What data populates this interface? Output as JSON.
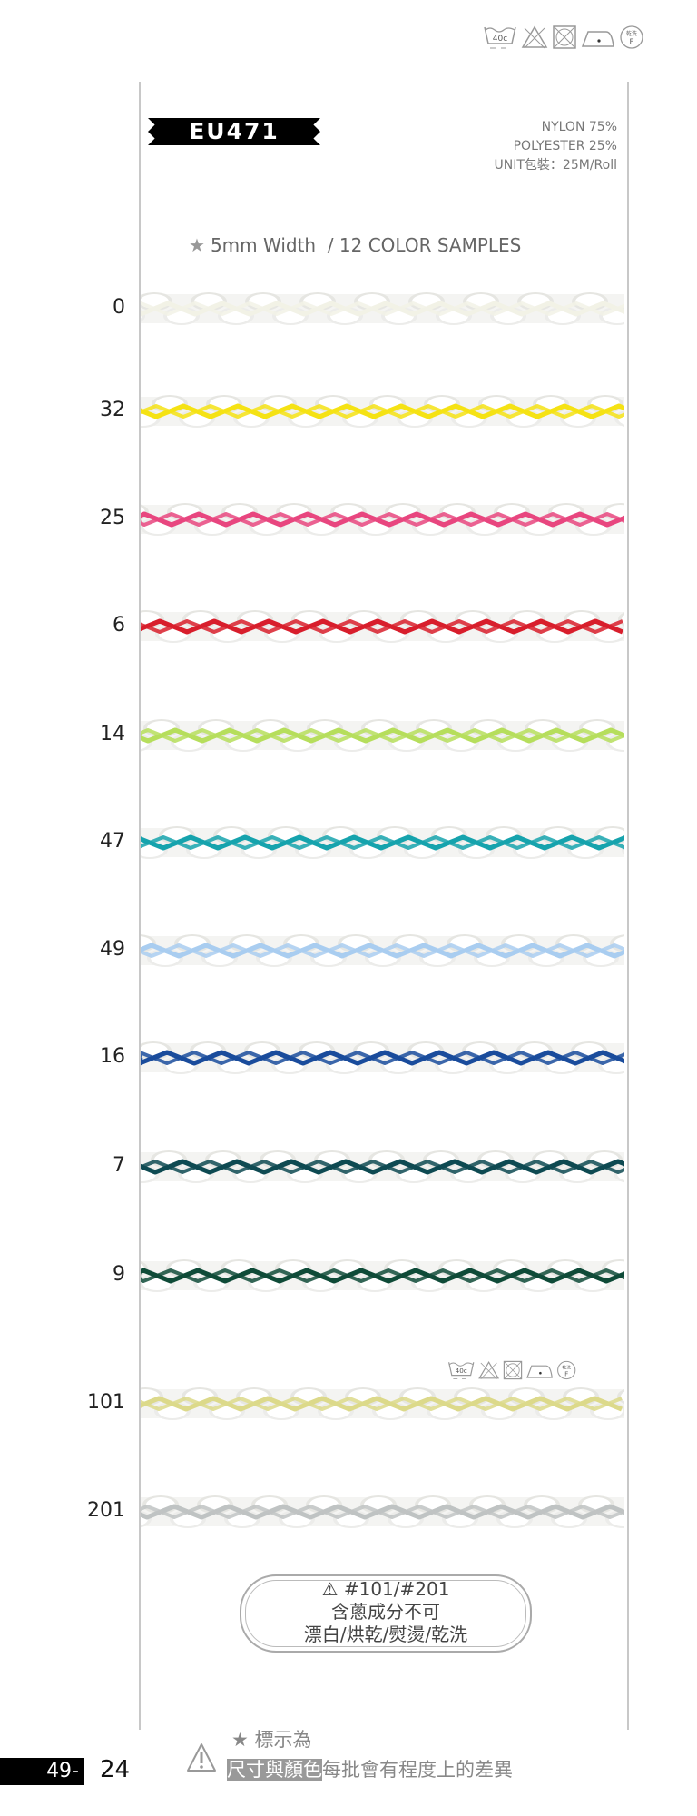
{
  "care_symbols": {
    "wash_temp": "40c",
    "dry_clean_label": "乾洗",
    "dry_clean_letter": "F",
    "icons": [
      "wash-40c-icon",
      "no-bleach-icon",
      "no-tumble-dry-icon",
      "iron-low-icon",
      "dry-clean-f-icon"
    ]
  },
  "product": {
    "code": "EU471",
    "composition": [
      "NYLON 75%",
      "POLYESTER 25%"
    ],
    "unit": "UNIT包裝：25M/Roll",
    "subtitle": "5mm Width  / 12 COLOR SAMPLES"
  },
  "samples": [
    {
      "number": "0",
      "color": "#f2f2e6"
    },
    {
      "number": "32",
      "color": "#f5e214"
    },
    {
      "number": "25",
      "color": "#e8467f"
    },
    {
      "number": "6",
      "color": "#d81e2c"
    },
    {
      "number": "14",
      "color": "#b6de5c"
    },
    {
      "number": "47",
      "color": "#16a3ad"
    },
    {
      "number": "49",
      "color": "#a9cdf0"
    },
    {
      "number": "16",
      "color": "#1a4c9c"
    },
    {
      "number": "7",
      "color": "#0e4a52"
    },
    {
      "number": "9",
      "color": "#0f4b38"
    },
    {
      "number": "101",
      "color": "#dcd98a"
    },
    {
      "number": "201",
      "color": "#bfc3c3"
    }
  ],
  "note": {
    "codes": "#101/#201",
    "line1": "含蔥成分不可",
    "line2": "漂白/烘乾/熨燙/乾洗"
  },
  "footer": {
    "star_label": "標示為",
    "highlight": "尺寸與顏色",
    "rest": "每批會有程度上的差異",
    "page_prefix": "49-",
    "page_number": "24"
  }
}
